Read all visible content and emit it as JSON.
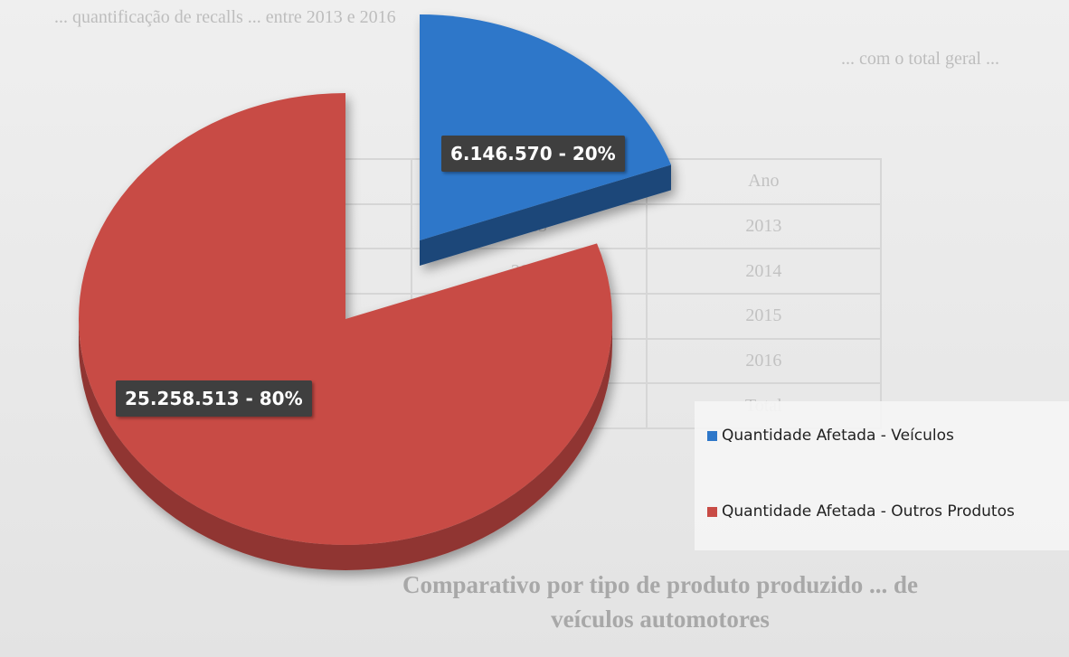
{
  "chart_data": {
    "type": "pie",
    "series": [
      {
        "name": "Quantidade Afetada - Veículos",
        "value": 6146570,
        "percent": 20,
        "label": "6.146.570 -  20%",
        "color": "#2e77c9"
      },
      {
        "name": "Quantidade Afetada - Outros Produtos",
        "value": 25258513,
        "percent": 80,
        "label": "25.258.513 -  80%",
        "color": "#c84b45"
      }
    ],
    "legend_position": "right",
    "style": "3d-exploded"
  },
  "background_text": {
    "line1": "... quantificação de recalls ... entre 2013 e 2016",
    "line2": "... com o total geral ...",
    "table": [
      [
        "",
        "2013",
        "2014",
        "2015",
        "2016",
        "Total"
      ],
      [
        "Ano",
        "2013",
        "2014",
        "2015",
        "2016",
        "Total"
      ]
    ],
    "caption_line1": "Comparativo por tipo de produto produzido ... de",
    "caption_line2": "veículos automotores"
  }
}
